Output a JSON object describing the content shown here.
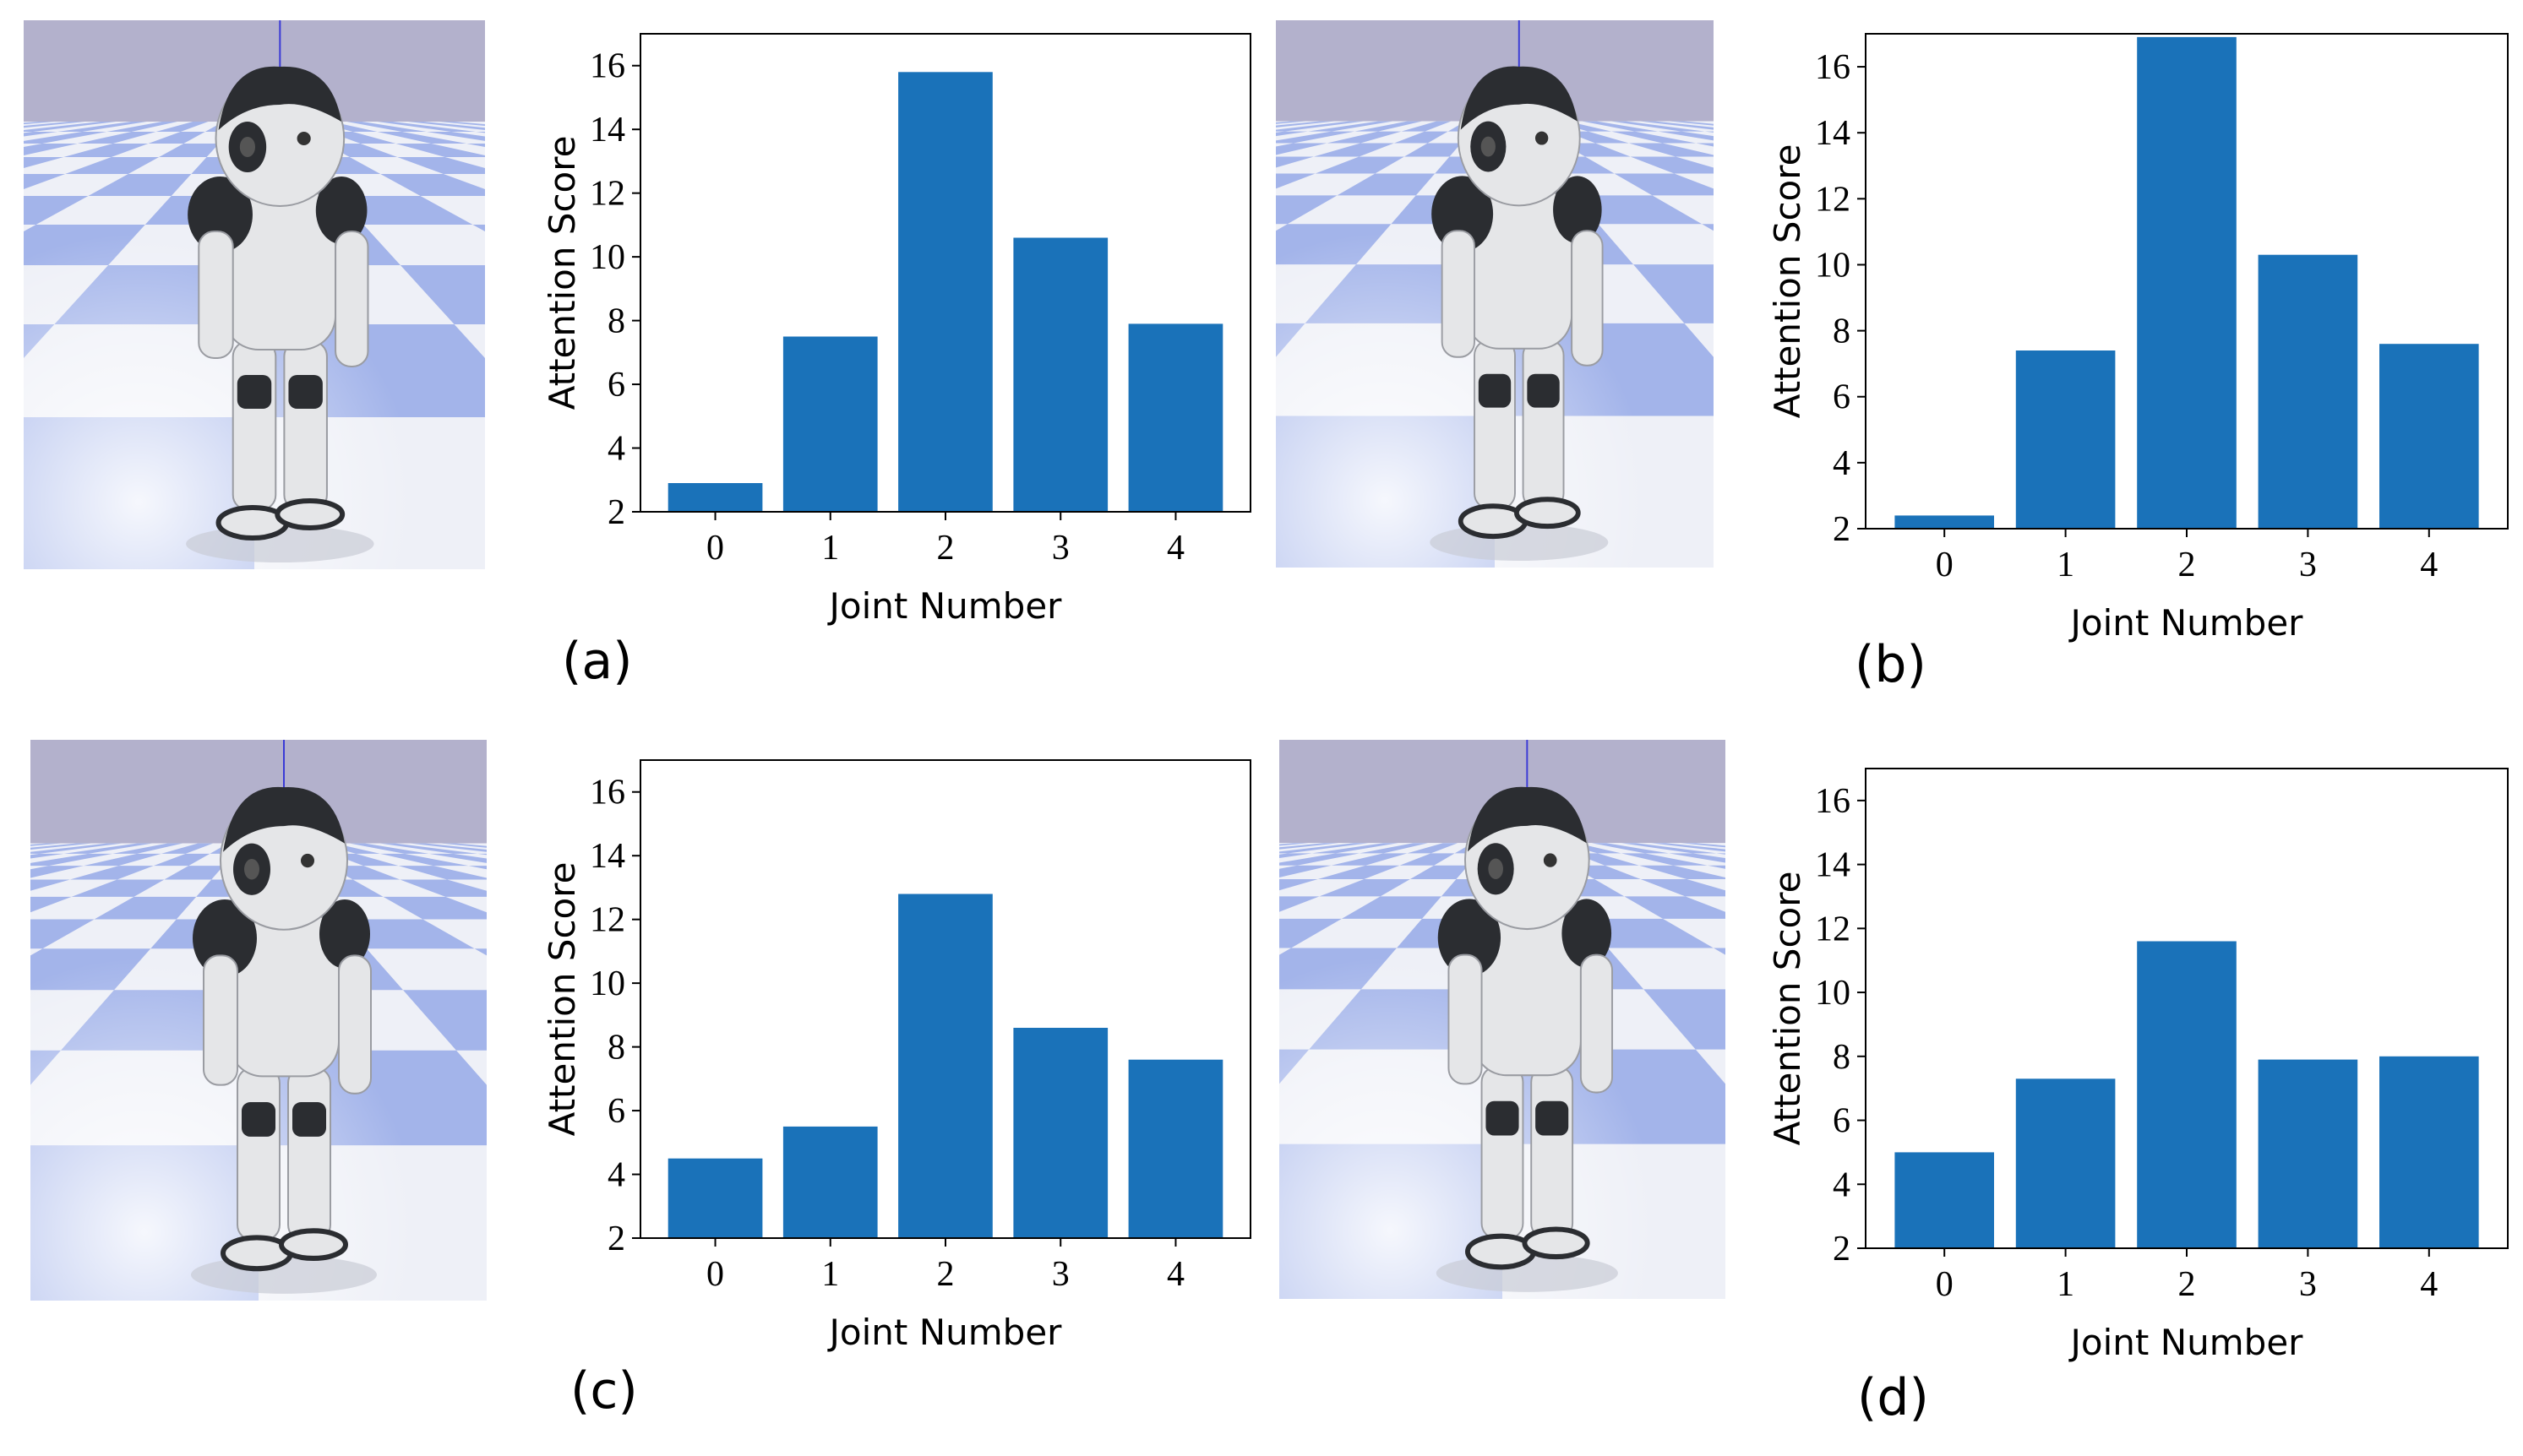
{
  "colors": {
    "bar": "#1a72b9",
    "sky": "#b3b1cc",
    "floor_light": "#eef0f7",
    "floor_blue": "#a3b4ea",
    "robot_white": "#e5e6e8",
    "robot_dark": "#2b2d31"
  },
  "panels": [
    {
      "caption": "(a)",
      "chart_data": {
        "type": "bar",
        "categories": [
          "0",
          "1",
          "2",
          "3",
          "4"
        ],
        "values": [
          2.9,
          7.5,
          15.8,
          10.6,
          7.9
        ],
        "xlabel": "Joint Number",
        "ylabel": "Attention Score",
        "ylim": [
          2,
          17
        ],
        "yticks": [
          "2",
          "4",
          "6",
          "8",
          "10",
          "12",
          "14",
          "16"
        ],
        "grid": false
      }
    },
    {
      "caption": "(b)",
      "chart_data": {
        "type": "bar",
        "categories": [
          "0",
          "1",
          "2",
          "3",
          "4"
        ],
        "values": [
          2.4,
          7.4,
          16.9,
          10.3,
          7.6
        ],
        "xlabel": "Joint Number",
        "ylabel": "Attention Score",
        "ylim": [
          2,
          17
        ],
        "yticks": [
          "2",
          "4",
          "6",
          "8",
          "10",
          "12",
          "14",
          "16"
        ],
        "grid": false
      }
    },
    {
      "caption": "(c)",
      "chart_data": {
        "type": "bar",
        "categories": [
          "0",
          "1",
          "2",
          "3",
          "4"
        ],
        "values": [
          4.5,
          5.5,
          12.8,
          8.6,
          7.6
        ],
        "xlabel": "Joint Number",
        "ylabel": "Attention Score",
        "ylim": [
          2,
          17
        ],
        "yticks": [
          "2",
          "4",
          "6",
          "8",
          "10",
          "12",
          "14",
          "16"
        ],
        "grid": false
      }
    },
    {
      "caption": "(d)",
      "chart_data": {
        "type": "bar",
        "categories": [
          "0",
          "1",
          "2",
          "3",
          "4"
        ],
        "values": [
          5.0,
          7.3,
          11.6,
          7.9,
          8.0
        ],
        "xlabel": "Joint Number",
        "ylabel": "Attention Score",
        "ylim": [
          2,
          17
        ],
        "yticks": [
          "2",
          "4",
          "6",
          "8",
          "10",
          "12",
          "14",
          "16"
        ],
        "grid": false
      }
    }
  ]
}
